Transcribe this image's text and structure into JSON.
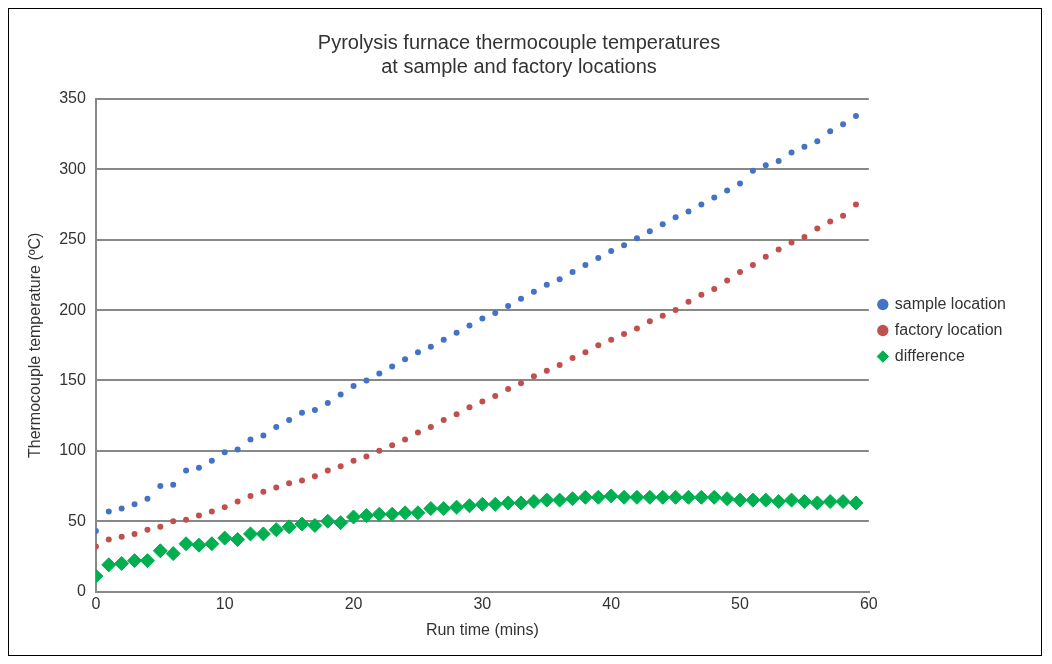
{
  "chart_data": {
    "type": "scatter",
    "title": "Pyrolysis furnace thermocouple temperatures\nat sample and factory locations",
    "xlabel": "Run time (mins)",
    "ylabel": "Thermocouple temperature (ºC)",
    "x": [
      0,
      1,
      2,
      3,
      4,
      5,
      6,
      7,
      8,
      9,
      10,
      11,
      12,
      13,
      14,
      15,
      16,
      17,
      18,
      19,
      20,
      21,
      22,
      23,
      24,
      25,
      26,
      27,
      28,
      29,
      30,
      31,
      32,
      33,
      34,
      35,
      36,
      37,
      38,
      39,
      40,
      41,
      42,
      43,
      44,
      45,
      46,
      47,
      48,
      49,
      50,
      51,
      52,
      53,
      54,
      55,
      56,
      57,
      58,
      59
    ],
    "series": [
      {
        "name": "sample location",
        "color": "#4472c4",
        "marker": "circle",
        "values": [
          43,
          57,
          59,
          62,
          66,
          75,
          76,
          86,
          88,
          93,
          99,
          101,
          108,
          111,
          117,
          122,
          127,
          129,
          134,
          140,
          146,
          150,
          155,
          160,
          165,
          170,
          174,
          179,
          184,
          189,
          194,
          198,
          203,
          208,
          213,
          218,
          222,
          227,
          232,
          237,
          242,
          246,
          251,
          256,
          261,
          266,
          270,
          275,
          280,
          285,
          290,
          299,
          303,
          306,
          312,
          316,
          320,
          327,
          332,
          338
        ]
      },
      {
        "name": "factory location",
        "color": "#c0504d",
        "marker": "circle",
        "values": [
          32,
          37,
          39,
          41,
          44,
          46,
          50,
          51,
          54,
          57,
          60,
          64,
          68,
          71,
          74,
          77,
          79,
          82,
          86,
          89,
          93,
          96,
          100,
          104,
          108,
          113,
          117,
          122,
          126,
          131,
          135,
          139,
          144,
          148,
          153,
          157,
          161,
          166,
          170,
          175,
          179,
          183,
          187,
          192,
          196,
          200,
          206,
          211,
          215,
          221,
          227,
          232,
          238,
          243,
          248,
          252,
          258,
          263,
          267,
          275
        ]
      },
      {
        "name": "difference",
        "color": "#00b050",
        "marker": "diamond",
        "values": [
          11,
          19,
          20,
          22,
          22,
          29,
          27,
          34,
          33,
          34,
          38,
          37,
          41,
          41,
          44,
          46,
          48,
          47,
          50,
          49,
          53,
          54,
          55,
          55,
          56,
          56,
          59,
          59,
          60,
          61,
          62,
          62,
          63,
          63,
          64,
          65,
          65,
          66,
          67,
          67,
          68,
          67,
          67,
          67,
          67,
          67,
          67,
          67,
          67,
          66,
          65,
          65,
          65,
          64,
          65,
          64,
          63,
          64,
          64,
          63
        ]
      }
    ],
    "xlim": [
      0,
      60
    ],
    "xticks": [
      0,
      10,
      20,
      30,
      40,
      50,
      60
    ],
    "ylim": [
      0,
      350
    ],
    "yticks": [
      0,
      50,
      100,
      150,
      200,
      250,
      300,
      350
    ],
    "grid": "y",
    "legend": "right"
  }
}
